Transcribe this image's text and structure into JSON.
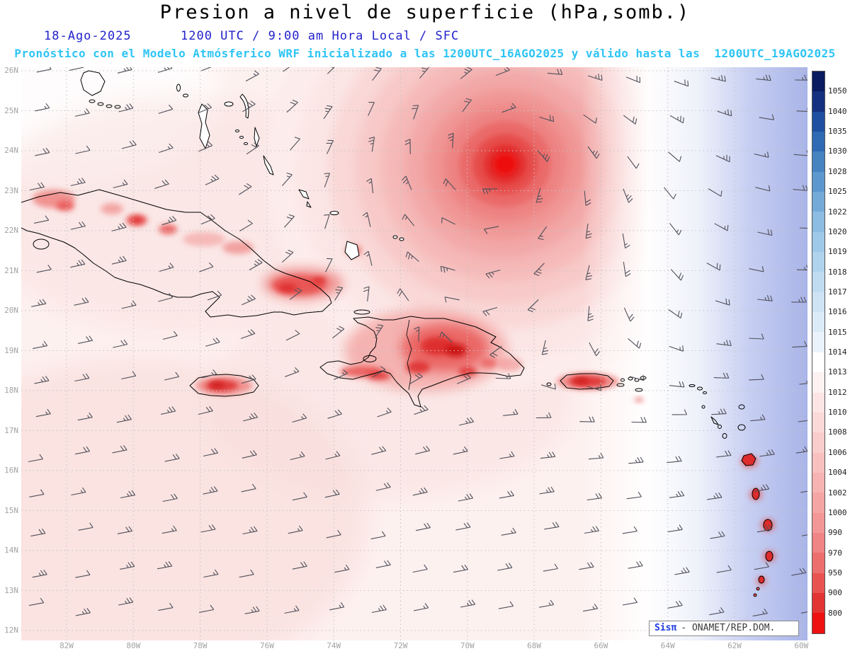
{
  "header": {
    "title": "Presion a nivel de superficie (hPa,somb.)",
    "date": "18-Ago-2025",
    "time": "1200 UTC / 9:00 am Hora Local / SFC",
    "forecast": "Pronóstico con el Modelo Atmósferico WRF inicializado a las 1200UTC_16AGO2025 y válido hasta las  1200UTC_19AGO2025",
    "colors": {
      "title": "#000000",
      "date_line": "#2222cc",
      "forecast_line": "#2ec4f5"
    }
  },
  "map": {
    "lat_ticks": [
      "26N",
      "25N",
      "24N",
      "23N",
      "22N",
      "21N",
      "20N",
      "19N",
      "18N",
      "17N",
      "16N",
      "15N",
      "14N",
      "13N",
      "12N"
    ],
    "lon_ticks": [
      "82W",
      "80W",
      "78W",
      "76W",
      "74W",
      "72W",
      "70W",
      "68W",
      "66W",
      "64W",
      "62W",
      "60W"
    ],
    "field": {
      "bg": "#fdf1f0",
      "tint": "#f9dfdd",
      "white": "#ffffff",
      "blue_mid": "#c7cff2",
      "blue_edge": "#a9b4e8",
      "rings": [
        "#fceceb",
        "#fbe6e5",
        "#f9d8d7",
        "#f7c9c8",
        "#f5b9b8",
        "#f2a8a7",
        "#f09695",
        "#ed8281",
        "#ea6a69",
        "#e64d4c",
        "#e32e2d",
        "#ee1111"
      ],
      "red1": "#f4adab",
      "red2": "#ef8a88",
      "red3": "#e85553",
      "red4": "#dd2c2b",
      "red5": "#c90f0f",
      "grid": "#c4c4c4",
      "coast": "#000000",
      "barb": "#50505a",
      "tick_text": "#a3a3a3"
    }
  },
  "colorbar": {
    "labels": [
      "1050",
      "1040",
      "1035",
      "1030",
      "1028",
      "1025",
      "1022",
      "1020",
      "1019",
      "1018",
      "1017",
      "1016",
      "1015",
      "1014",
      "1013",
      "1012",
      "1010",
      "1008",
      "1006",
      "1004",
      "1002",
      "1000",
      "990",
      "970",
      "950",
      "900",
      "800"
    ],
    "colors": [
      "#0b1b60",
      "#14317f",
      "#1e4fa0",
      "#2e6ab3",
      "#4583c1",
      "#5c98ce",
      "#74aad8",
      "#8cbce1",
      "#9fc9e8",
      "#b0d3ed",
      "#c0dcf1",
      "#cee4f5",
      "#dcebf8",
      "#eaf2fb",
      "#ffffff",
      "#fdf2f1",
      "#fce5e4",
      "#fbd9d8",
      "#f9cdcc",
      "#f8c0bf",
      "#f6b3b2",
      "#f4a5a4",
      "#f29796",
      "#ef8584",
      "#ec6f6e",
      "#e85352",
      "#e23433",
      "#ee1111"
    ]
  },
  "attribution": {
    "brand": "Sisπ",
    "text": "- ONAMET/REP.DOM."
  }
}
